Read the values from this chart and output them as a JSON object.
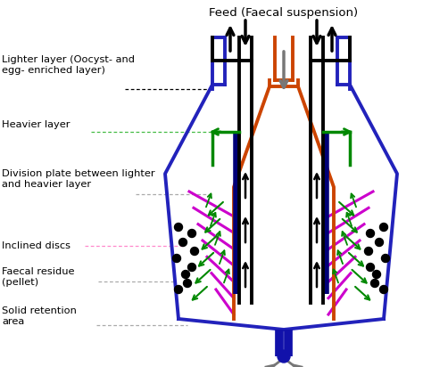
{
  "title": "Feed (Faecal suspension)",
  "labels": {
    "lighter_layer": "Lighter layer (Oocyst- and\negg- enriched layer)",
    "heavier_layer": "Heavier layer",
    "division_plate": "Division plate between lighter\nand heavier layer",
    "inclined_discs": "Inclined discs",
    "faecal_residue": "Faecal residue\n(pellet)",
    "solid_retention": "Solid retention\narea"
  },
  "colors": {
    "outer_body": "#2222bb",
    "inner_cone": "#cc4400",
    "black": "#000000",
    "green": "#008800",
    "purple": "#cc00cc",
    "gray": "#777777",
    "background": "#ffffff"
  },
  "dotted_colors": {
    "lighter_layer": "#000000",
    "heavier_layer": "#44bb44",
    "division_plate": "#aaaaaa",
    "inclined_discs": "#ff88cc",
    "faecal_residue": "#aaaaaa",
    "solid_retention": "#aaaaaa"
  }
}
